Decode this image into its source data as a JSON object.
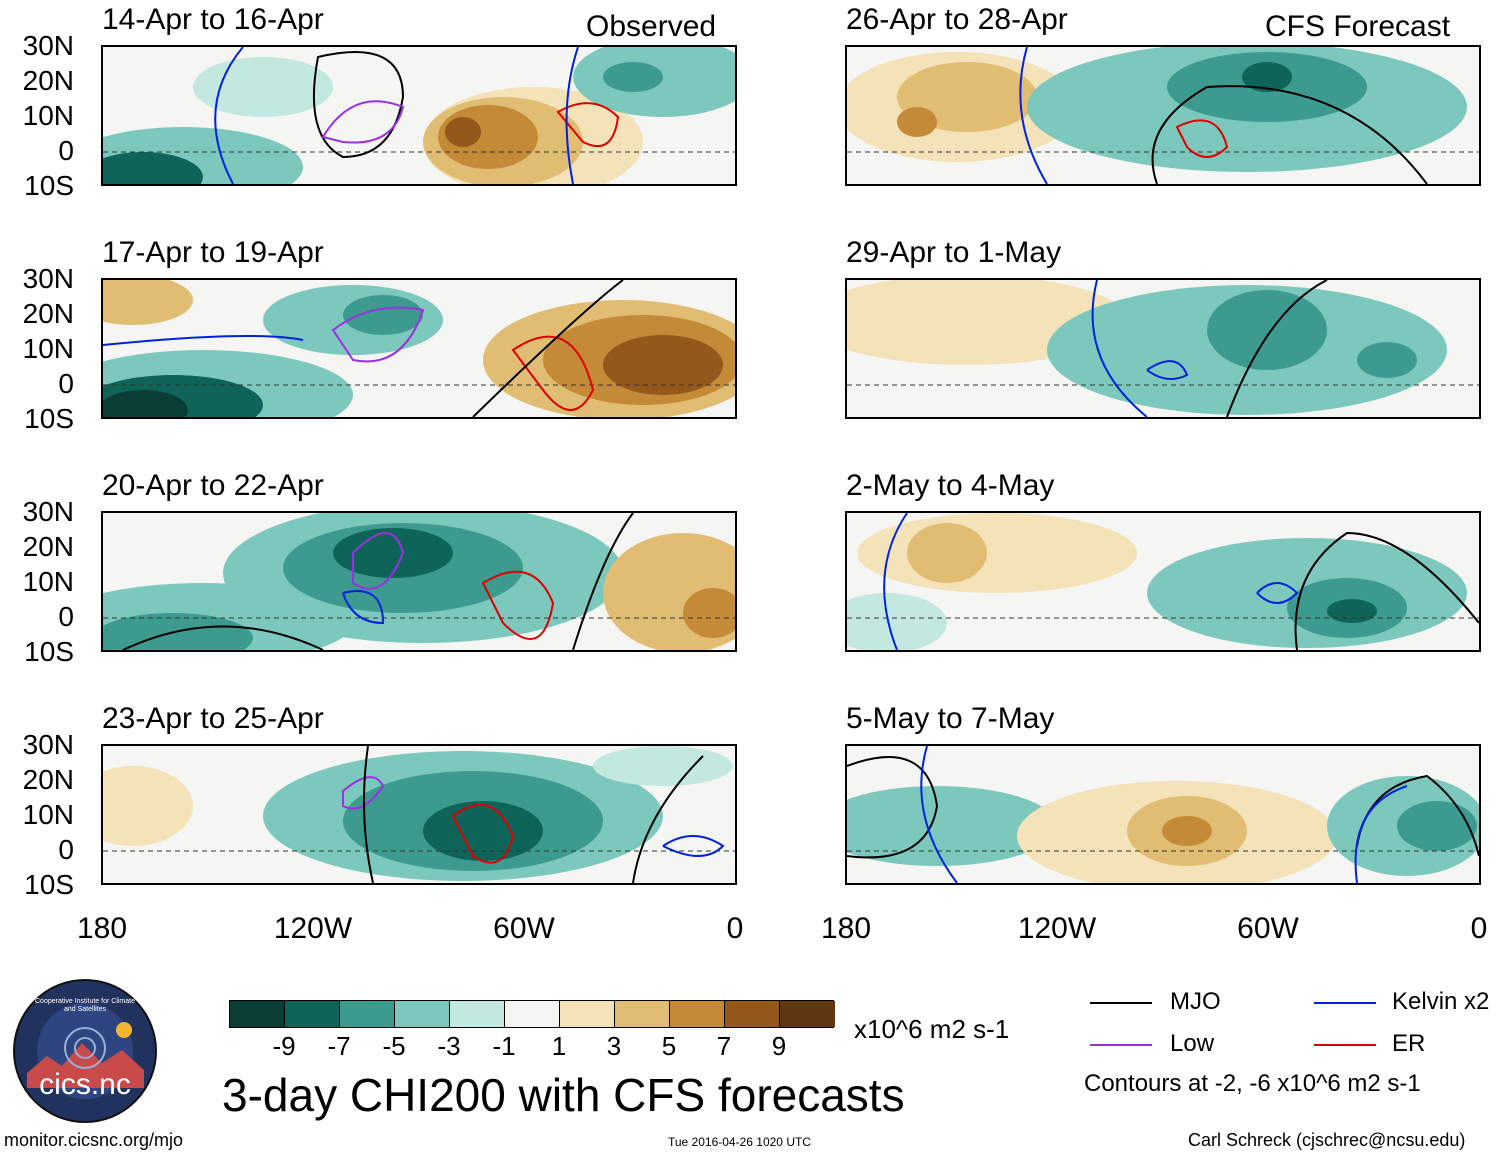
{
  "title": "3-day CHI200 with CFS forecasts",
  "headers": {
    "observed": "Observed",
    "forecast": "CFS Forecast"
  },
  "panels": [
    {
      "label": "14-Apr to 16-Apr"
    },
    {
      "label": "17-Apr to 19-Apr"
    },
    {
      "label": "20-Apr to 22-Apr"
    },
    {
      "label": "23-Apr to 25-Apr"
    },
    {
      "label": "26-Apr to 28-Apr"
    },
    {
      "label": "29-Apr to 1-May"
    },
    {
      "label": "2-May to 4-May"
    },
    {
      "label": "5-May to 7-May"
    }
  ],
  "lat_labels": [
    "30N",
    "20N",
    "10N",
    "0",
    "10S"
  ],
  "lon_labels": [
    "180",
    "120W",
    "60W",
    "0"
  ],
  "colorbar": {
    "colors": [
      "#0a3d36",
      "#0e6459",
      "#3d9a8f",
      "#7cc8bc",
      "#c2e8e0",
      "#f5f5f3",
      "#f4e2b8",
      "#e1bc73",
      "#c48a37",
      "#94581b",
      "#5e3813"
    ],
    "ticks": [
      "-9",
      "-7",
      "-5",
      "-3",
      "-1",
      "1",
      "3",
      "5",
      "7",
      "9"
    ],
    "units": "x10^6 m2 s-1"
  },
  "legend": {
    "items": [
      {
        "label": "MJO",
        "color": "#000000"
      },
      {
        "label": "Kelvin x2",
        "color": "#0022dd"
      },
      {
        "label": "Low",
        "color": "#9b30e0"
      },
      {
        "label": "ER",
        "color": "#dd0000"
      }
    ],
    "contours_note": "Contours at -2, -6 x10^6 m2 s-1"
  },
  "logo_text": "cics.nc",
  "logo_ring_text": "Cooperative Institute for Climate and Satellites",
  "footer": {
    "left": "monitor.cicsnc.org/mjo",
    "center": "Tue 2016-04-26 1020 UTC",
    "right": "Carl Schreck (cjschrec@ncsu.edu)"
  }
}
